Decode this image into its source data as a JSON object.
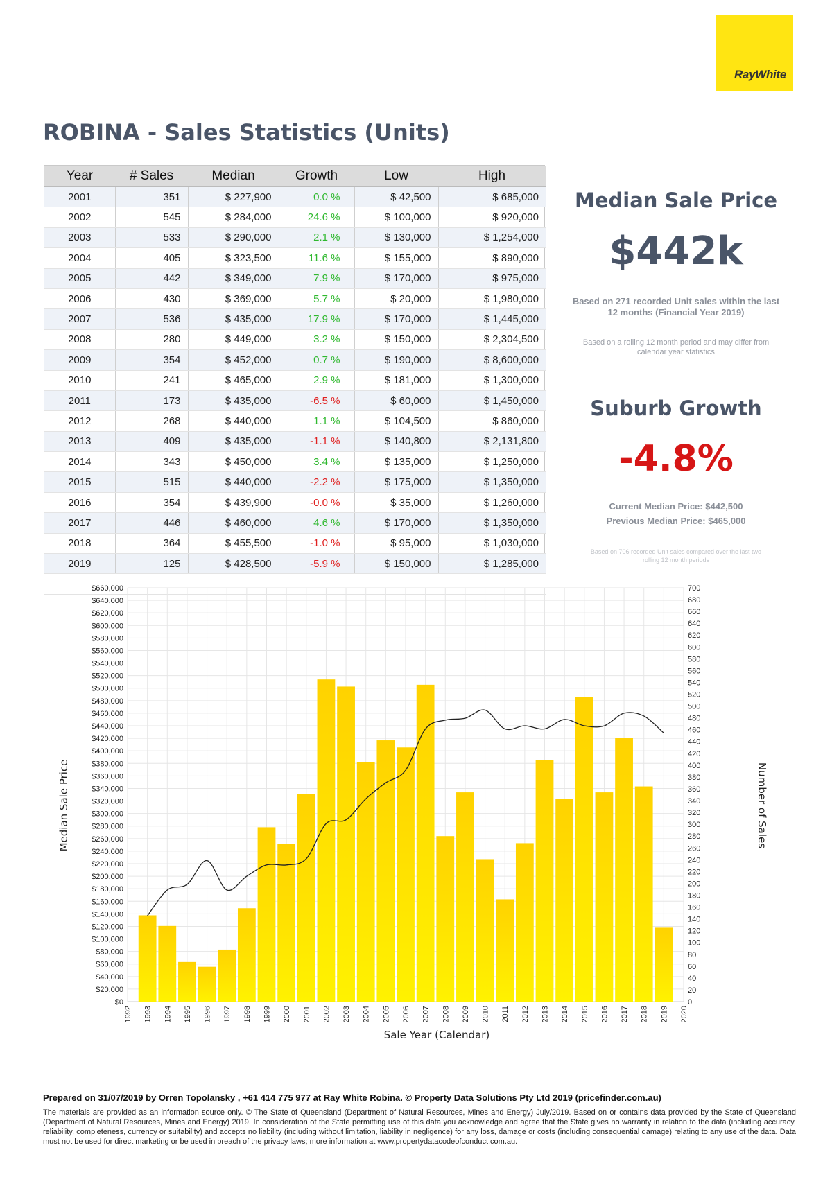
{
  "brand": {
    "logo_text": "RayWhite",
    "logo_color": "#ffe512"
  },
  "title": "ROBINA - Sales Statistics (Units)",
  "table": {
    "headers": [
      "Year",
      "# Sales",
      "Median",
      "Growth",
      "Low",
      "High"
    ],
    "rows": [
      [
        "2001",
        "351",
        "$ 227,900",
        "0.0 %",
        "$ 42,500",
        "$ 685,000"
      ],
      [
        "2002",
        "545",
        "$ 284,000",
        "24.6 %",
        "$ 100,000",
        "$ 920,000"
      ],
      [
        "2003",
        "533",
        "$ 290,000",
        "2.1 %",
        "$ 130,000",
        "$ 1,254,000"
      ],
      [
        "2004",
        "405",
        "$ 323,500",
        "11.6 %",
        "$ 155,000",
        "$ 890,000"
      ],
      [
        "2005",
        "442",
        "$ 349,000",
        "7.9 %",
        "$ 170,000",
        "$ 975,000"
      ],
      [
        "2006",
        "430",
        "$ 369,000",
        "5.7 %",
        "$ 20,000",
        "$ 1,980,000"
      ],
      [
        "2007",
        "536",
        "$ 435,000",
        "17.9 %",
        "$ 170,000",
        "$ 1,445,000"
      ],
      [
        "2008",
        "280",
        "$ 449,000",
        "3.2 %",
        "$ 150,000",
        "$ 2,304,500"
      ],
      [
        "2009",
        "354",
        "$ 452,000",
        "0.7 %",
        "$ 190,000",
        "$ 8,600,000"
      ],
      [
        "2010",
        "241",
        "$ 465,000",
        "2.9 %",
        "$ 181,000",
        "$ 1,300,000"
      ],
      [
        "2011",
        "173",
        "$ 435,000",
        "-6.5 %",
        "$ 60,000",
        "$ 1,450,000"
      ],
      [
        "2012",
        "268",
        "$ 440,000",
        "1.1 %",
        "$ 104,500",
        "$ 860,000"
      ],
      [
        "2013",
        "409",
        "$ 435,000",
        "-1.1 %",
        "$ 140,800",
        "$ 2,131,800"
      ],
      [
        "2014",
        "343",
        "$ 450,000",
        "3.4 %",
        "$ 135,000",
        "$ 1,250,000"
      ],
      [
        "2015",
        "515",
        "$ 440,000",
        "-2.2 %",
        "$ 175,000",
        "$ 1,350,000"
      ],
      [
        "2016",
        "354",
        "$ 439,900",
        "-0.0 %",
        "$ 35,000",
        "$ 1,260,000"
      ],
      [
        "2017",
        "446",
        "$ 460,000",
        "4.6 %",
        "$ 170,000",
        "$ 1,350,000"
      ],
      [
        "2018",
        "364",
        "$ 455,500",
        "-1.0 %",
        "$ 95,000",
        "$ 1,030,000"
      ],
      [
        "2019",
        "125",
        "$ 428,500",
        "-5.9 %",
        "$ 150,000",
        "$ 1,285,000"
      ]
    ]
  },
  "summary": {
    "median_title": "Median Sale Price",
    "median_value": "$442k",
    "median_note": "Based on 271 recorded Unit sales within the last 12 months (Financial Year 2019)",
    "rolling_note": "Based on a rolling 12 month period and may differ from calendar year statistics",
    "growth_title": "Suburb Growth",
    "growth_value": "-4.8%",
    "current_median": "Current Median Price: $442,500",
    "previous_median": "Previous Median Price: $465,000",
    "growth_note": "Based on 706 recorded Unit sales compared over the last two rolling 12 month periods"
  },
  "chart_data": {
    "type": "bar",
    "xlabel": "Sale Year (Calendar)",
    "ylabel_left": "Median Sale Price",
    "ylabel_right": "Number of Sales",
    "x_ticks": [
      "1992",
      "1993",
      "1994",
      "1995",
      "1996",
      "1997",
      "1998",
      "1999",
      "2000",
      "2001",
      "2002",
      "2003",
      "2004",
      "2005",
      "2006",
      "2007",
      "2008",
      "2009",
      "2010",
      "2011",
      "2012",
      "2013",
      "2014",
      "2015",
      "2016",
      "2017",
      "2018",
      "2019",
      "2020"
    ],
    "ylim_left": [
      0,
      660000
    ],
    "ylim_right": [
      0,
      700
    ],
    "left_ticks": [
      "$0",
      "$20,000",
      "$40,000",
      "$60,000",
      "$80,000",
      "$100,000",
      "$120,000",
      "$140,000",
      "$160,000",
      "$180,000",
      "$200,000",
      "$220,000",
      "$240,000",
      "$260,000",
      "$280,000",
      "$300,000",
      "$320,000",
      "$340,000",
      "$360,000",
      "$380,000",
      "$400,000",
      "$420,000",
      "$440,000",
      "$460,000",
      "$480,000",
      "$500,000",
      "$520,000",
      "$540,000",
      "$560,000",
      "$580,000",
      "$600,000",
      "$620,000",
      "$640,000",
      "$660,000"
    ],
    "right_ticks": [
      "0",
      "20",
      "40",
      "60",
      "80",
      "100",
      "120",
      "140",
      "160",
      "180",
      "200",
      "220",
      "240",
      "260",
      "280",
      "300",
      "320",
      "340",
      "360",
      "380",
      "400",
      "420",
      "440",
      "460",
      "480",
      "500",
      "520",
      "540",
      "560",
      "580",
      "600",
      "620",
      "640",
      "660",
      "680",
      "700"
    ],
    "series": [
      {
        "type": "bar",
        "axis": "right",
        "x": [
          1993,
          1994,
          1995,
          1996,
          1997,
          1998,
          1999,
          2000,
          2001,
          2002,
          2003,
          2004,
          2005,
          2006,
          2007,
          2008,
          2009,
          2010,
          2011,
          2012,
          2013,
          2014,
          2015,
          2016,
          2017,
          2018,
          2019
        ],
        "values": [
          146,
          128,
          67,
          59,
          88,
          158,
          295,
          267,
          351,
          545,
          533,
          405,
          442,
          430,
          536,
          280,
          354,
          241,
          173,
          268,
          409,
          343,
          515,
          354,
          446,
          364,
          125
        ]
      },
      {
        "type": "line",
        "axis": "left",
        "x": [
          1993,
          1994,
          1995,
          1996,
          1997,
          1998,
          1999,
          2000,
          2001,
          2002,
          2003,
          2004,
          2005,
          2006,
          2007,
          2008,
          2009,
          2010,
          2011,
          2012,
          2013,
          2014,
          2015,
          2016,
          2017,
          2018,
          2019
        ],
        "values": [
          137000,
          178000,
          187000,
          225000,
          178000,
          200000,
          218000,
          218000,
          227900,
          284000,
          290000,
          323500,
          349000,
          369000,
          435000,
          449000,
          452000,
          465000,
          435000,
          440000,
          435000,
          450000,
          440000,
          439900,
          460000,
          455500,
          428500
        ]
      }
    ],
    "colors": {
      "bar_top": "#ffd200",
      "bar_bottom": "#fff200",
      "line": "#222222",
      "grid": "#e6e6e6"
    }
  },
  "footer": {
    "prepared": "Prepared on 31/07/2019 by Orren Topolansky , +61 414 775 977 at Ray White Robina. © Property Data Solutions Pty Ltd 2019 (pricefinder.com.au)",
    "disclaimer": "The materials are provided as an information source only. © The State of Queensland (Department of Natural Resources, Mines and Energy) July/2019. Based on or contains data provided by the State of Queensland (Department of Natural Resources, Mines and Energy) 2019. In consideration of the State permitting use of this data you acknowledge and agree that the State gives no warranty in relation to the data (including accuracy, reliability, completeness, currency or suitability) and accepts no liability (including without limitation, liability in negligence) for any loss, damage or costs (including consequential damage) relating to any use of the data. Data must not be used for direct marketing or be used in breach of the privacy laws; more information at www.propertydatacodeofconduct.com.au."
  }
}
